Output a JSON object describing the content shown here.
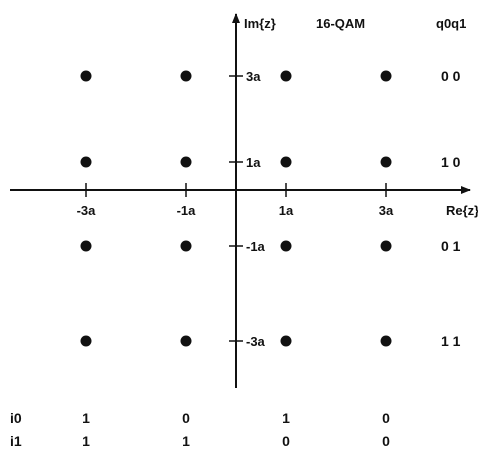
{
  "title": "16-QAM",
  "axes": {
    "x_label": "Re{z}",
    "y_label": "Im{z}",
    "x_ticks": [
      "-3a",
      "-1a",
      "1a",
      "3a"
    ],
    "y_ticks": [
      "3a",
      "1a",
      "-1a",
      "-3a"
    ]
  },
  "row_bits_header": "q0q1",
  "row_bits": [
    "0 0",
    "1 0",
    "0 1",
    "1 1"
  ],
  "column_bits": {
    "i0_label": "i0",
    "i1_label": "i1",
    "i0": [
      "1",
      "0",
      "1",
      "0"
    ],
    "i1": [
      "1",
      "1",
      "0",
      "0"
    ]
  },
  "points": [
    {
      "re": -3,
      "im": 3
    },
    {
      "re": -1,
      "im": 3
    },
    {
      "re": 1,
      "im": 3
    },
    {
      "re": 3,
      "im": 3
    },
    {
      "re": -3,
      "im": 1
    },
    {
      "re": -1,
      "im": 1
    },
    {
      "re": 1,
      "im": 1
    },
    {
      "re": 3,
      "im": 1
    },
    {
      "re": -3,
      "im": -1
    },
    {
      "re": -1,
      "im": -1
    },
    {
      "re": 1,
      "im": -1
    },
    {
      "re": 3,
      "im": -1
    },
    {
      "re": -3,
      "im": -3
    },
    {
      "re": -1,
      "im": -3
    },
    {
      "re": 1,
      "im": -3
    },
    {
      "re": 3,
      "im": -3
    }
  ],
  "colors": {
    "ink": "#111111",
    "background": "#ffffff"
  }
}
